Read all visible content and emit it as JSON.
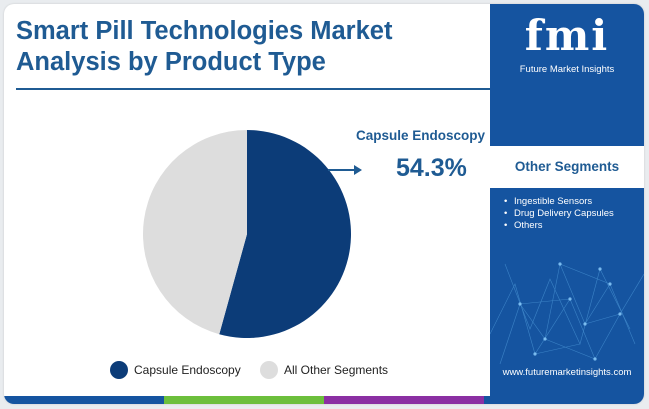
{
  "header": {
    "title": "Smart Pill Technologies Market Analysis by Product Type"
  },
  "brand": {
    "logo_text": "fmi",
    "caption": "Future Market Insights",
    "website": "www.futuremarketinsights.com"
  },
  "sidebar": {
    "segments_title": "Other Segments",
    "items": [
      {
        "label": "Ingestible Sensors"
      },
      {
        "label": "Drug Delivery Capsules"
      },
      {
        "label": "Others"
      }
    ]
  },
  "callout": {
    "label": "Capsule Endoscopy",
    "value": "54.3%"
  },
  "chart_data": {
    "type": "pie",
    "slices": [
      {
        "name": "Capsule Endoscopy",
        "value": 54.3,
        "color": "#0c3c78"
      },
      {
        "name": "All Other Segments",
        "value": 45.7,
        "color": "#dddddd"
      }
    ],
    "legend": [
      {
        "label": "Capsule Endoscopy",
        "color": "#0c3c78"
      },
      {
        "label": "All Other Segments",
        "color": "#dddddd"
      }
    ],
    "legend_position": "bottom"
  },
  "colors": {
    "brand_blue": "#1554a0",
    "title_blue": "#1f5b93",
    "accent_bar": [
      "#1554a0",
      "#6cbf3c",
      "#8b2fa3",
      "#1554a0"
    ]
  }
}
